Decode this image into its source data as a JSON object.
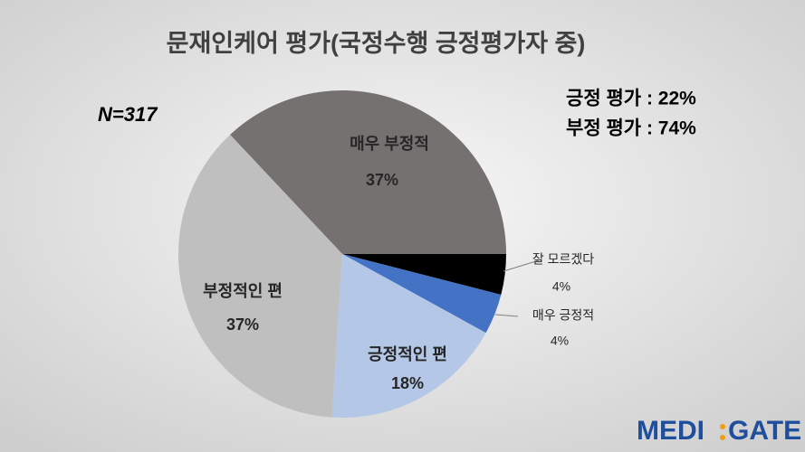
{
  "chart_data": {
    "type": "pie",
    "title": "문재인케어 평가(국정수행 긍정평가자 중)",
    "annotations": [
      "N=317",
      "긍정 평가 : 22%",
      "부정 평가 : 74%"
    ],
    "logo": [
      "MEDI",
      "GATE"
    ],
    "categories": [
      "매우 부정적",
      "잘 모르겠다",
      "매우 긍정적",
      "긍정적인 편",
      "부정적인 편"
    ],
    "values": [
      37,
      4,
      4,
      18,
      37
    ],
    "value_labels": [
      "37%",
      "4%",
      "4%",
      "18%",
      "37%"
    ],
    "colors": [
      "#767171",
      "#000000",
      "#4472c4",
      "#b4c7e7",
      "#bfbfbf"
    ]
  }
}
